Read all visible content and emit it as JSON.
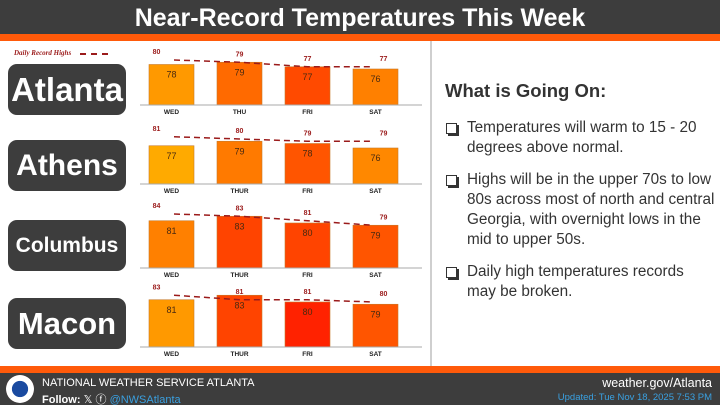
{
  "title": "Near-Record Temperatures This Week",
  "legend_label": "Daily Record Highs",
  "right_panel": {
    "heading": "What is Going On:",
    "bullets": [
      "Temperatures will warm to 15 - 20 degrees above normal.",
      "Highs will be in the upper 70s to low 80s across most of north and central Georgia, with overnight lows in the mid to upper 50s.",
      "Daily high temperatures records may be broken."
    ]
  },
  "footer": {
    "org": "NATIONAL WEATHER SERVICE ATLANTA",
    "follow_label": "Follow:",
    "x_icon": "x-logo-icon",
    "facebook_icon": "facebook-icon",
    "handle": "@NWSAtlanta",
    "website": "weather.gov/Atlanta",
    "updated": "Updated: Tue Nov 18, 2025 7:53 PM"
  },
  "colors": {
    "record_line": "#9b1b1b",
    "header": "#3d3d3d",
    "accent": "#ff5a0a"
  },
  "chart_data": [
    {
      "type": "bar",
      "city": "Atlanta",
      "categories": [
        "WED",
        "THU",
        "FRI",
        "SAT"
      ],
      "values": [
        78,
        79,
        77,
        76
      ],
      "record_highs": [
        80,
        79,
        77,
        77
      ],
      "colors": [
        "#ff9900",
        "#ff6a00",
        "#ff4a00",
        "#ff8000"
      ]
    },
    {
      "type": "bar",
      "city": "Athens",
      "categories": [
        "WED",
        "THUR",
        "FRI",
        "SAT"
      ],
      "values": [
        77,
        79,
        78,
        76
      ],
      "record_highs": [
        81,
        80,
        79,
        79
      ],
      "colors": [
        "#ffaa00",
        "#ff7a00",
        "#ff5500",
        "#ff8800"
      ]
    },
    {
      "type": "bar",
      "city": "Columbus",
      "categories": [
        "WED",
        "THUR",
        "FRI",
        "SAT"
      ],
      "values": [
        81,
        83,
        80,
        79
      ],
      "record_highs": [
        84,
        83,
        81,
        79
      ],
      "colors": [
        "#ff8000",
        "#ff4400",
        "#ff4400",
        "#ff5500"
      ]
    },
    {
      "type": "bar",
      "city": "Macon",
      "categories": [
        "WED",
        "THUR",
        "FRI",
        "SAT"
      ],
      "values": [
        81,
        83,
        80,
        79
      ],
      "record_highs": [
        83,
        81,
        81,
        80
      ],
      "colors": [
        "#ff9900",
        "#ff4400",
        "#ff2200",
        "#ff5500"
      ]
    }
  ]
}
